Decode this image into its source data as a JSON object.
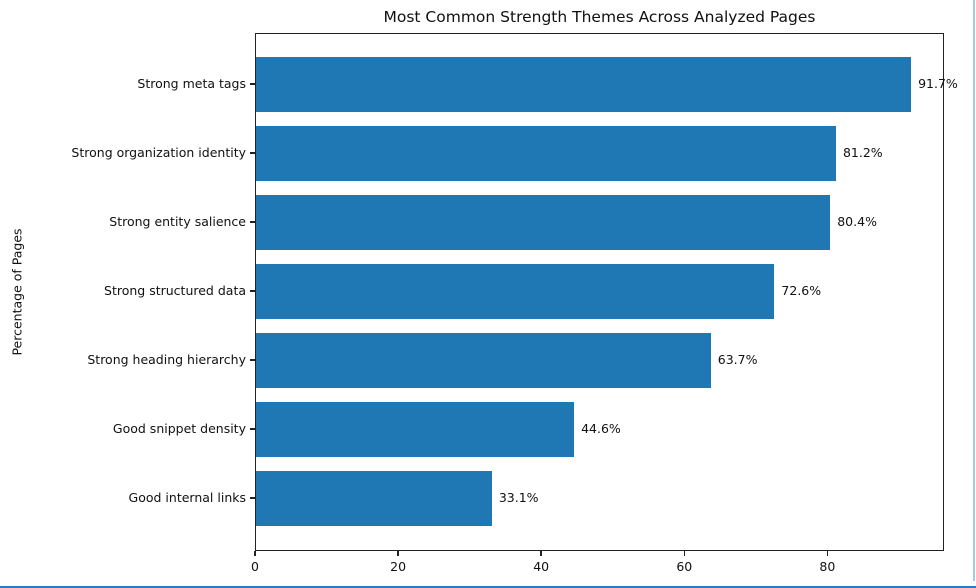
{
  "chart_data": {
    "type": "bar",
    "orientation": "horizontal",
    "title": "Most Common Strength Themes Across Analyzed Pages",
    "xlabel": "",
    "ylabel": "Percentage of Pages",
    "categories": [
      "Strong meta tags",
      "Strong organization identity",
      "Strong entity salience",
      "Strong structured data",
      "Strong heading hierarchy",
      "Good snippet density",
      "Good internal links"
    ],
    "values": [
      91.7,
      81.2,
      80.4,
      72.6,
      63.7,
      44.6,
      33.1
    ],
    "value_labels": [
      "91.7%",
      "81.2%",
      "80.4%",
      "72.6%",
      "63.7%",
      "44.6%",
      "33.1%"
    ],
    "xlim": [
      0,
      96.3
    ],
    "xticks": [
      0,
      20,
      40,
      60,
      80
    ],
    "bar_color": "#1f77b4",
    "grid": false,
    "legend_position": "none"
  },
  "decor": {
    "right_edge_color": "#a9c9da",
    "bottom_edge_color": "#3178bc"
  }
}
